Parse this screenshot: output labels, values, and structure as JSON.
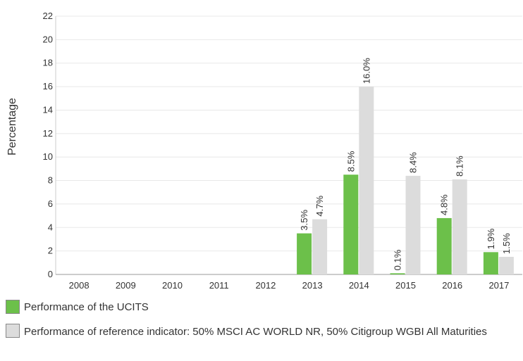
{
  "chart_data": {
    "type": "bar",
    "y_label": "Percentage",
    "categories": [
      "2008",
      "2009",
      "2010",
      "2011",
      "2012",
      "2013",
      "2014",
      "2015",
      "2016",
      "2017"
    ],
    "series": [
      {
        "name": "Performance of the UCITS",
        "color": "#6cc04a",
        "values": [
          null,
          null,
          null,
          null,
          null,
          3.5,
          8.5,
          0.1,
          4.8,
          1.9
        ],
        "value_labels": [
          null,
          null,
          null,
          null,
          null,
          "3.5%",
          "8.5%",
          "0.1%",
          "4.8%",
          "1.9%"
        ]
      },
      {
        "name": "Performance of reference indicator: 50% MSCI AC WORLD NR, 50% Citigroup WGBI All Maturities",
        "color": "#dcdcdc",
        "values": [
          null,
          null,
          null,
          null,
          null,
          4.7,
          16.0,
          8.4,
          8.1,
          1.5
        ],
        "value_labels": [
          null,
          null,
          null,
          null,
          null,
          "4.7%",
          "16.0%",
          "8.4%",
          "8.1%",
          "1.5%"
        ]
      }
    ],
    "ylim": [
      0,
      22
    ],
    "yticks": [
      0,
      2,
      4,
      6,
      8,
      10,
      12,
      14,
      16,
      18,
      20,
      22
    ],
    "grid": true
  }
}
